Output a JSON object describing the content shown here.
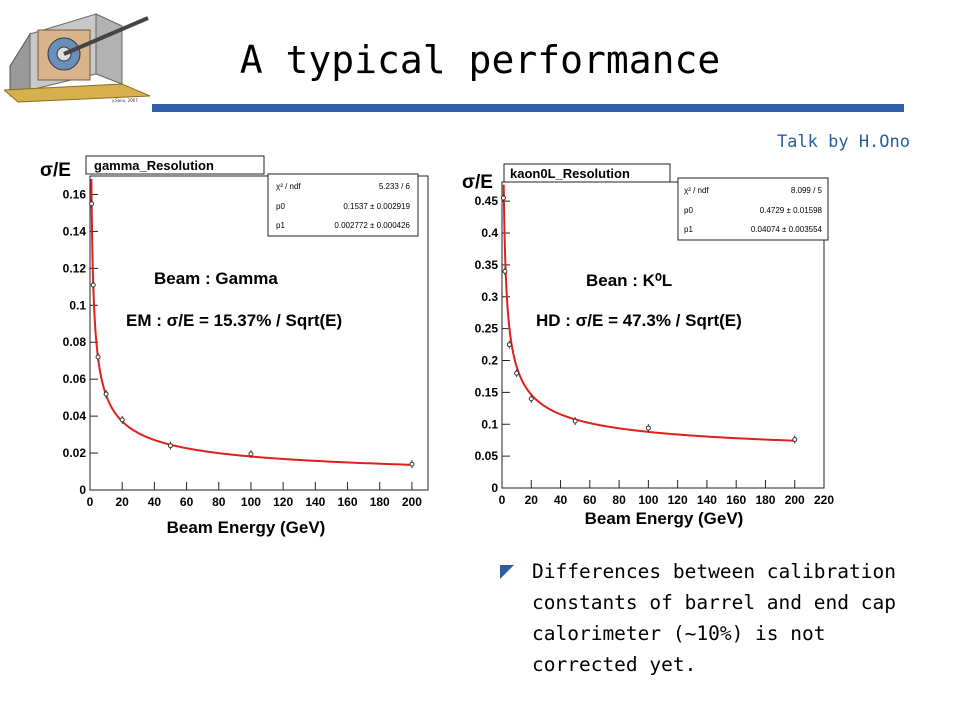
{
  "slide": {
    "title": "A typical performance",
    "credit": "Talk by H.Ono",
    "bullet": "Differences between calibration constants of barrel and end cap calorimeter (~10%) is not corrected yet."
  },
  "colors": {
    "accent": "#2f5fa8",
    "fit": "#e0201b",
    "credit": "#2a5d9f",
    "frame_bg": "#ffffff"
  },
  "chart_data": [
    {
      "type": "scatter",
      "title": "gamma_Resolution",
      "ylabel": "σ/E",
      "xlabel": "Beam Energy (GeV)",
      "xlim": [
        0,
        210
      ],
      "ylim": [
        0,
        0.17
      ],
      "x_ticks": [
        "0",
        "20",
        "40",
        "60",
        "80",
        "100",
        "120",
        "140",
        "160",
        "180",
        "200"
      ],
      "y_ticks": [
        "0",
        "0.02",
        "0.04",
        "0.06",
        "0.08",
        "0.1",
        "0.12",
        "0.14",
        "0.16"
      ],
      "series": [
        {
          "points": [
            [
              1,
              0.155
            ],
            [
              2,
              0.111
            ],
            [
              5,
              0.072
            ],
            [
              10,
              0.052
            ],
            [
              20,
              0.038
            ],
            [
              50,
              0.024
            ],
            [
              100,
              0.0195
            ],
            [
              200,
              0.014
            ]
          ]
        }
      ],
      "fit": {
        "p0": 0.1537,
        "p1": 0.002772
      },
      "stats": [
        {
          "label": "χ² / ndf",
          "value": "5.233 / 6"
        },
        {
          "label": "p0",
          "value": "0.1537 ± 0.002919"
        },
        {
          "label": "p1",
          "value": "0.002772 ± 0.000426"
        }
      ],
      "annotations": [
        "Beam : Gamma",
        "EM : σ/E = 15.37% / Sqrt(E)"
      ]
    },
    {
      "type": "scatter",
      "title": "kaon0L_Resolution",
      "ylabel": "σ/E",
      "xlabel": "Beam Energy (GeV)",
      "xlim": [
        0,
        220
      ],
      "ylim": [
        0,
        0.48
      ],
      "x_ticks": [
        "0",
        "20",
        "40",
        "60",
        "80",
        "100",
        "120",
        "140",
        "160",
        "180",
        "200",
        "220"
      ],
      "y_ticks": [
        "0",
        "0.05",
        "0.1",
        "0.15",
        "0.2",
        "0.25",
        "0.3",
        "0.35",
        "0.4",
        "0.45"
      ],
      "series": [
        {
          "points": [
            [
              1,
              0.455
            ],
            [
              2,
              0.34
            ],
            [
              5,
              0.225
            ],
            [
              10,
              0.18
            ],
            [
              20,
              0.14
            ],
            [
              50,
              0.105
            ],
            [
              100,
              0.094
            ],
            [
              200,
              0.076
            ]
          ]
        }
      ],
      "fit": {
        "p0": 0.4729,
        "p1": 0.04074
      },
      "stats": [
        {
          "label": "χ² / ndf",
          "value": "8.099 / 5"
        },
        {
          "label": "p0",
          "value": "0.4729 ± 0.01598"
        },
        {
          "label": "p1",
          "value": "0.04074 ± 0.003554"
        }
      ],
      "annotations": [
        "Bean : K⁰L",
        "HD : σ/E = 47.3% / Sqrt(E)"
      ]
    }
  ]
}
